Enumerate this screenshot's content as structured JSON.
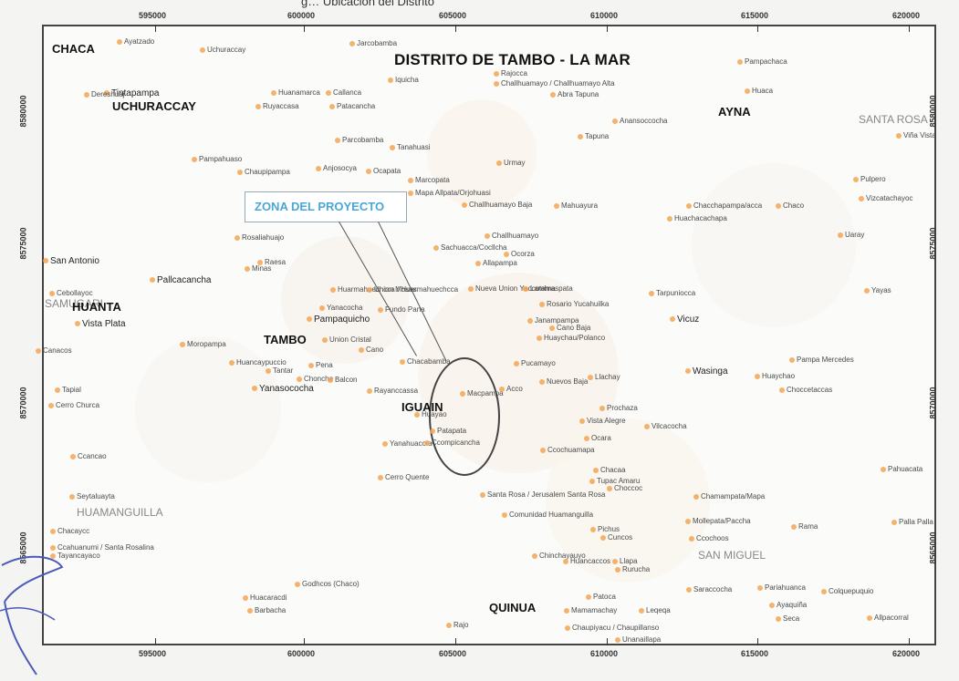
{
  "header_text": "g…      Ubicación del Distrito",
  "map_title": "DISTRITO DE TAMBO - LA MAR",
  "zone_label": "ZONA DEL PROYECTO",
  "x_ticks_top": [
    "595000",
    "600000",
    "605000",
    "610000",
    "615000",
    "620000"
  ],
  "x_ticks_bottom": [
    "595000",
    "600000",
    "605000",
    "610000",
    "615000",
    "620000"
  ],
  "y_ticks_left": [
    "8580000",
    "8575000",
    "8570000",
    "8565000"
  ],
  "y_ticks_right": [
    "8580000",
    "8575000",
    "8570000",
    "8565000"
  ],
  "place_labels": [
    {
      "name": "CHACA",
      "style": "bm"
    },
    {
      "name": "Ayatzado",
      "style": "s"
    },
    {
      "name": "Uchuraccay",
      "style": "s"
    },
    {
      "name": "Jarcobamba",
      "style": "s"
    },
    {
      "name": "Pampachaca",
      "style": "s"
    },
    {
      "name": "Tintapampa",
      "style": "m"
    },
    {
      "name": "UCHURACCAY",
      "style": "b"
    },
    {
      "name": "Iquicha",
      "style": "s"
    },
    {
      "name": "Huanamarca",
      "style": "s"
    },
    {
      "name": "Callanca",
      "style": "s"
    },
    {
      "name": "Ruyaccasa",
      "style": "s"
    },
    {
      "name": "Patacancha",
      "style": "s"
    },
    {
      "name": "Rajocca",
      "style": "s"
    },
    {
      "name": "Challhuamayo / Challhuamayo Alta",
      "style": "s"
    },
    {
      "name": "Abra Tapuna",
      "style": "s"
    },
    {
      "name": "Huaca",
      "style": "s"
    },
    {
      "name": "AYNA",
      "style": "b"
    },
    {
      "name": "Anansoccocha",
      "style": "s"
    },
    {
      "name": "SANTA ROSA",
      "style": "g"
    },
    {
      "name": "Viña Vista",
      "style": "s"
    },
    {
      "name": "Parcobamba",
      "style": "s"
    },
    {
      "name": "Tanahuasi",
      "style": "s"
    },
    {
      "name": "Tapuna",
      "style": "s"
    },
    {
      "name": "Urmay",
      "style": "s"
    },
    {
      "name": "Pampahuaso",
      "style": "s"
    },
    {
      "name": "Chaupipampa",
      "style": "s"
    },
    {
      "name": "Anjosocya",
      "style": "s"
    },
    {
      "name": "Ocapata",
      "style": "s"
    },
    {
      "name": "Marcopata",
      "style": "s"
    },
    {
      "name": "Pulpero",
      "style": "s"
    },
    {
      "name": "Mapa Allpata/Orjohuasi",
      "style": "s"
    },
    {
      "name": "Challhuamayo Baja",
      "style": "s"
    },
    {
      "name": "Mahuayura",
      "style": "s"
    },
    {
      "name": "Chacchapampa/acca",
      "style": "s"
    },
    {
      "name": "Chaco",
      "style": "s"
    },
    {
      "name": "Vizcatachayoc",
      "style": "s"
    },
    {
      "name": "Huachacachapa",
      "style": "s"
    },
    {
      "name": "Uaray",
      "style": "s"
    },
    {
      "name": "Rosaliahuajo",
      "style": "s"
    },
    {
      "name": "Challhuamayo",
      "style": "s"
    },
    {
      "name": "San Antonio",
      "style": "m"
    },
    {
      "name": "Raesa",
      "style": "s"
    },
    {
      "name": "Sachuacca/Cocllcha",
      "style": "s"
    },
    {
      "name": "Ocorza",
      "style": "s"
    },
    {
      "name": "Minas",
      "style": "s"
    },
    {
      "name": "Allapampa",
      "style": "s"
    },
    {
      "name": "Pallcacancha",
      "style": "m"
    },
    {
      "name": "Cebollayoc",
      "style": "s"
    },
    {
      "name": "Huarmahuechcca / Huarmahuechcca",
      "style": "s"
    },
    {
      "name": "Union Moses",
      "style": "s"
    },
    {
      "name": "Nueva Union Yaccotama",
      "style": "s"
    },
    {
      "name": "Lamhraspata",
      "style": "s"
    },
    {
      "name": "Tarpuniocca",
      "style": "s"
    },
    {
      "name": "Yayas",
      "style": "s"
    },
    {
      "name": "SAMUGARI",
      "style": "g"
    },
    {
      "name": "HUANTA",
      "style": "b"
    },
    {
      "name": "Yanacocha",
      "style": "s"
    },
    {
      "name": "Fundo Pana",
      "style": "s"
    },
    {
      "name": "Rosario Yucahuilka",
      "style": "s"
    },
    {
      "name": "Vista Plata",
      "style": "m"
    },
    {
      "name": "Pampaquicho",
      "style": "m"
    },
    {
      "name": "Janampampa",
      "style": "s"
    },
    {
      "name": "Cano Baja",
      "style": "s"
    },
    {
      "name": "Vicuz",
      "style": "m"
    },
    {
      "name": "Canacos",
      "style": "s"
    },
    {
      "name": "Moropampa",
      "style": "s"
    },
    {
      "name": "TAMBO",
      "style": "bm"
    },
    {
      "name": "Union Cristal",
      "style": "s"
    },
    {
      "name": "Huaychau/Polanco",
      "style": "s"
    },
    {
      "name": "Cano",
      "style": "s"
    },
    {
      "name": "Chacabamba",
      "style": "s"
    },
    {
      "name": "Pampa Mercedes",
      "style": "s"
    },
    {
      "name": "Huancaypuccio",
      "style": "s"
    },
    {
      "name": "Pena",
      "style": "s"
    },
    {
      "name": "Pucamayo",
      "style": "s"
    },
    {
      "name": "Wasinga",
      "style": "m"
    },
    {
      "name": "Tantar",
      "style": "s"
    },
    {
      "name": "Chonche",
      "style": "s"
    },
    {
      "name": "Balcon",
      "style": "s"
    },
    {
      "name": "Huaychao",
      "style": "s"
    },
    {
      "name": "Llachay",
      "style": "s"
    },
    {
      "name": "Tapial",
      "style": "s"
    },
    {
      "name": "Yanasococha",
      "style": "m"
    },
    {
      "name": "Rayanccassa",
      "style": "s"
    },
    {
      "name": "Macpampa",
      "style": "s"
    },
    {
      "name": "Acco",
      "style": "s"
    },
    {
      "name": "Nuevos Baja",
      "style": "s"
    },
    {
      "name": "Choccetaccas",
      "style": "s"
    },
    {
      "name": "Cerro Churca",
      "style": "s"
    },
    {
      "name": "IGUAIN",
      "style": "bm"
    },
    {
      "name": "Prochaza",
      "style": "s"
    },
    {
      "name": "Huayao",
      "style": "s"
    },
    {
      "name": "Vilcacocha",
      "style": "s"
    },
    {
      "name": "Patapata",
      "style": "s"
    },
    {
      "name": "Vista Alegre",
      "style": "s"
    },
    {
      "name": "Ocara",
      "style": "s"
    },
    {
      "name": "Ccancao",
      "style": "s"
    },
    {
      "name": "Yanahuaccra",
      "style": "s"
    },
    {
      "name": "Ccochuamapa",
      "style": "s"
    },
    {
      "name": "Ccompicancha",
      "style": "s"
    },
    {
      "name": "Pahuacata",
      "style": "s"
    },
    {
      "name": "Chacaa",
      "style": "s"
    },
    {
      "name": "Tupac Amaru",
      "style": "s"
    },
    {
      "name": "Choccoc",
      "style": "s"
    },
    {
      "name": "Cerro Quente",
      "style": "s"
    },
    {
      "name": "Santa Rosa / Jerusalem Santa Rosa",
      "style": "s"
    },
    {
      "name": "Chamampata/Mapa",
      "style": "s"
    },
    {
      "name": "Seytaluayta",
      "style": "s"
    },
    {
      "name": "HUAMANGUILLA",
      "style": "g"
    },
    {
      "name": "Comunidad Huamanguilla",
      "style": "s"
    },
    {
      "name": "Mollepata/Paccha",
      "style": "s"
    },
    {
      "name": "Pichus",
      "style": "s"
    },
    {
      "name": "Ccochoos",
      "style": "s"
    },
    {
      "name": "Rama",
      "style": "s"
    },
    {
      "name": "Palla Palla",
      "style": "s"
    },
    {
      "name": "Chacaycc",
      "style": "s"
    },
    {
      "name": "Cuncos",
      "style": "s"
    },
    {
      "name": "SAN MIGUEL",
      "style": "g"
    },
    {
      "name": "Ccahuanumi / Santa Rosalina",
      "style": "s"
    },
    {
      "name": "Tayancayaco",
      "style": "s"
    },
    {
      "name": "Chinchayauyo",
      "style": "s"
    },
    {
      "name": "Huancaccos",
      "style": "s"
    },
    {
      "name": "Llapa",
      "style": "s"
    },
    {
      "name": "Rurucha",
      "style": "s"
    },
    {
      "name": "Godhcos (Chaco)",
      "style": "s"
    },
    {
      "name": "Saraccocha",
      "style": "s"
    },
    {
      "name": "Pariahuanca",
      "style": "s"
    },
    {
      "name": "Colquepuquio",
      "style": "s"
    },
    {
      "name": "Ayaquiña",
      "style": "s"
    },
    {
      "name": "Huacaracdi",
      "style": "s"
    },
    {
      "name": "Patoca",
      "style": "s"
    },
    {
      "name": "Barbacha",
      "style": "s"
    },
    {
      "name": "QUINUA",
      "style": "bm"
    },
    {
      "name": "Mamamachay",
      "style": "s"
    },
    {
      "name": "Leqeqa",
      "style": "s"
    },
    {
      "name": "Seca",
      "style": "s"
    },
    {
      "name": "Allpacorral",
      "style": "s"
    },
    {
      "name": "Rajo",
      "style": "s"
    },
    {
      "name": "Chaupiyacu / Chaupillanso",
      "style": "s"
    },
    {
      "name": "Unanaillapa",
      "style": "s"
    },
    {
      "name": "Dereshuaj",
      "style": "s"
    }
  ]
}
